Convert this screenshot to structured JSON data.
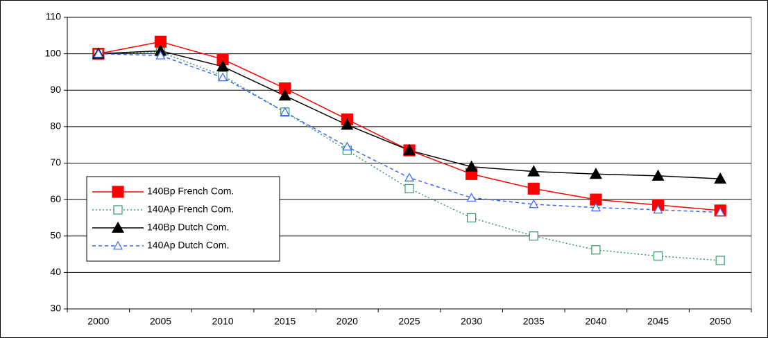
{
  "chart_data": {
    "type": "line",
    "categories": [
      "2000",
      "2005",
      "2010",
      "2015",
      "2020",
      "2025",
      "2030",
      "2035",
      "2040",
      "2045",
      "2050"
    ],
    "series": [
      {
        "name": "140Bp French Com.",
        "color": "#ff0000",
        "style": "solid",
        "marker": "square",
        "filled": true,
        "values": [
          100,
          103.3,
          98.5,
          90.5,
          82,
          73.5,
          67,
          63,
          60,
          58.5,
          57
        ]
      },
      {
        "name": "140Ap French Com.",
        "color": "#339966",
        "style": "dotted",
        "marker": "square",
        "filled": false,
        "values": [
          100,
          100.5,
          94,
          84,
          73.5,
          63,
          55,
          50,
          46.2,
          44.5,
          43.3
        ]
      },
      {
        "name": "140Bp Dutch Com.",
        "color": "#000000",
        "style": "solid",
        "marker": "triangle",
        "filled": true,
        "values": [
          100,
          100.8,
          96.5,
          88.5,
          80.5,
          73.5,
          69,
          67.7,
          67,
          66.5,
          65.7
        ]
      },
      {
        "name": "140Ap Dutch Com.",
        "color": "#3366ff",
        "style": "dashed",
        "marker": "triangle",
        "filled": false,
        "values": [
          100,
          99.5,
          93.5,
          84,
          74.5,
          66,
          60.5,
          58.7,
          57.8,
          57.2,
          56.5
        ]
      }
    ],
    "ylim": [
      30,
      110
    ],
    "yticks": [
      30,
      40,
      50,
      60,
      70,
      80,
      90,
      100,
      110
    ],
    "grid": true,
    "legend": "lower left"
  }
}
